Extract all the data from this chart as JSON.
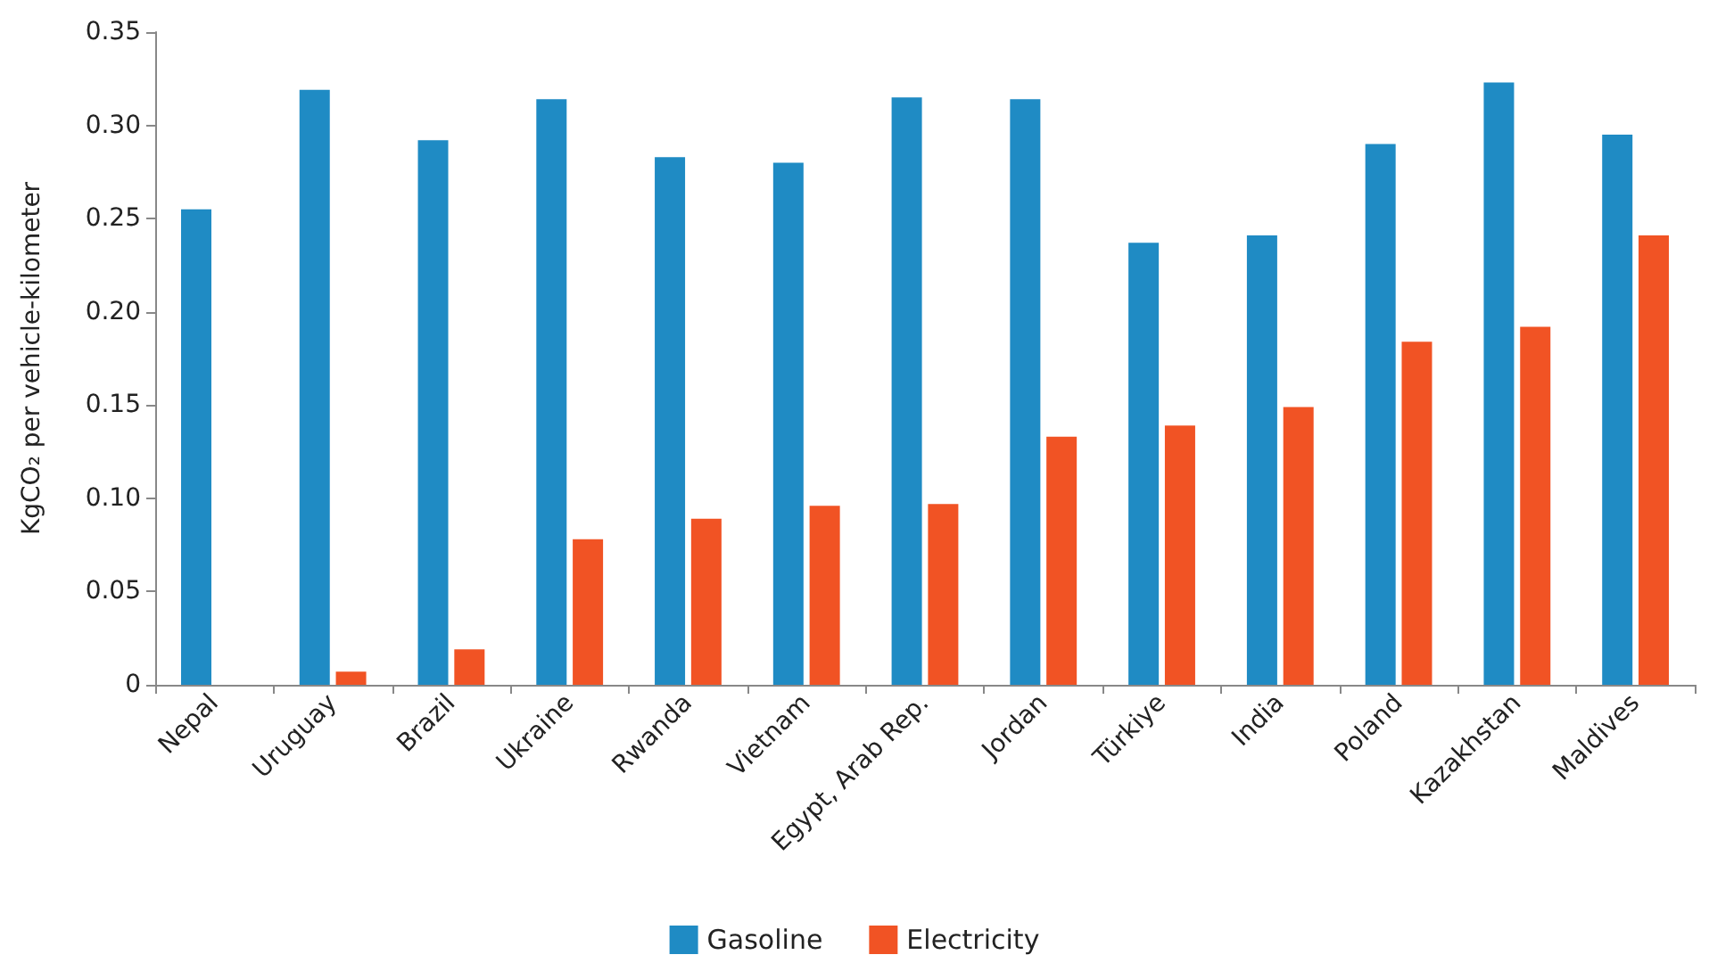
{
  "chart_data": {
    "type": "bar",
    "ylabel": "KgCO₂ per vehicle-kilometer",
    "categories": [
      "Nepal",
      "Uruguay",
      "Brazil",
      "Ukraine",
      "Rwanda",
      "Vietnam",
      "Egypt, Arab Rep.",
      "Jordan",
      "Türkiye",
      "India",
      "Poland",
      "Kazakhstan",
      "Maldives"
    ],
    "series": [
      {
        "name": "Gasoline",
        "color": "#1f8bc4",
        "values": [
          0.255,
          0.319,
          0.292,
          0.314,
          0.283,
          0.28,
          0.315,
          0.314,
          0.237,
          0.241,
          0.29,
          0.323,
          0.295
        ]
      },
      {
        "name": "Electricity",
        "color": "#f15324",
        "values": [
          null,
          0.007,
          0.019,
          0.078,
          0.089,
          0.096,
          0.097,
          0.133,
          0.139,
          0.149,
          0.184,
          0.192,
          0.241
        ]
      }
    ],
    "ylim": [
      0,
      0.35
    ],
    "yticks": [
      {
        "value": 0,
        "label": "0"
      },
      {
        "value": 0.05,
        "label": "0.05"
      },
      {
        "value": 0.1,
        "label": "0.10"
      },
      {
        "value": 0.15,
        "label": "0.15"
      },
      {
        "value": 0.2,
        "label": "0.20"
      },
      {
        "value": 0.25,
        "label": "0.25"
      },
      {
        "value": 0.3,
        "label": "0.30"
      },
      {
        "value": 0.35,
        "label": "0.35"
      }
    ],
    "grid": false,
    "legend": "bottom"
  }
}
